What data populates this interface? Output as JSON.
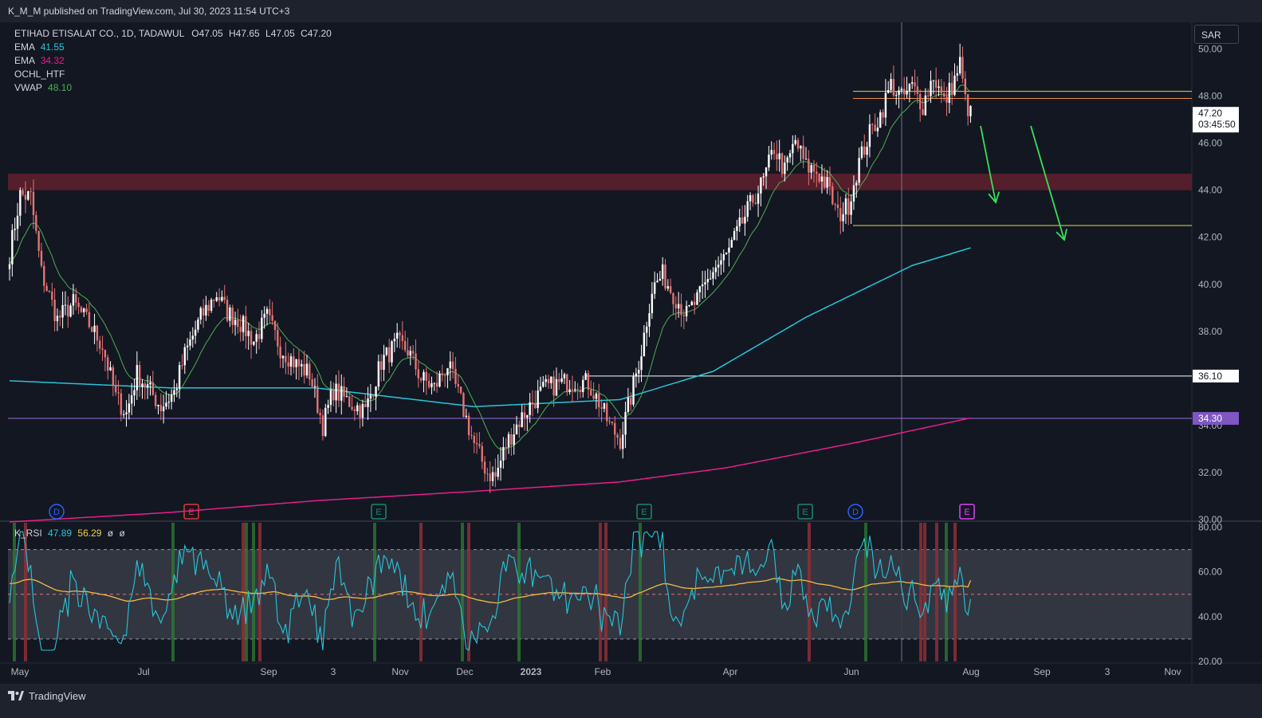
{
  "header": {
    "published_text": "K_M_M published on TradingView.com, Jul 30, 2023 11:54 UTC+3"
  },
  "legend": {
    "symbol": "ETIHAD ETISALAT CO., 1D, TADAWUL",
    "o_label": "O",
    "o": "47.05",
    "h_label": "H",
    "h": "47.65",
    "l_label": "L",
    "l": "47.05",
    "c_label": "C",
    "c": "47.20",
    "indicators": [
      {
        "name": "EMA",
        "value": "41.55",
        "color": "#26c6da"
      },
      {
        "name": "EMA",
        "value": "34.32",
        "color": "#e91e8c"
      },
      {
        "name": "OCHL_HTF",
        "value": "",
        "color": "#d1d4dc"
      },
      {
        "name": "VWAP",
        "value": "48.10",
        "color": "#4caf50"
      }
    ]
  },
  "rsi_legend": {
    "name": "K_RSI",
    "v1": "47.89",
    "v2": "56.29",
    "v3": "ø",
    "v4": "ø"
  },
  "currency": "SAR",
  "footer": {
    "brand": "TradingView"
  },
  "colors": {
    "up": "#ffffff",
    "down": "#e57373",
    "ema_fast": "#26c6da",
    "ema_slow": "#e91e8c",
    "vwap": "#4caf50",
    "zone": "#5c1f2e",
    "arrow": "#39e05a",
    "level": "#e8d44d",
    "purple": "#9c6ade",
    "band": "#363a45"
  },
  "chart_data": {
    "type": "candlestick",
    "title": "ETIHAD ETISALAT CO., 1D, TADAWUL",
    "price_axis": {
      "ylim": [
        30,
        51
      ],
      "ticks": [
        "50.00",
        "48.00",
        "46.00",
        "44.00",
        "42.00",
        "40.00",
        "38.00",
        "36.00",
        "34.00",
        "32.00",
        "30.00"
      ]
    },
    "time_axis": {
      "labels": [
        "May",
        "Jul",
        "Sep",
        "3",
        "Nov",
        "Dec",
        "2023",
        "Feb",
        "Apr",
        "Jun",
        "Aug",
        "Sep",
        "3",
        "Nov"
      ]
    },
    "price_anchors": [
      [
        0,
        41.3
      ],
      [
        4,
        43.8
      ],
      [
        8,
        43.7
      ],
      [
        12,
        40.5
      ],
      [
        18,
        38.5
      ],
      [
        24,
        39.2
      ],
      [
        30,
        38.3
      ],
      [
        35,
        37.4
      ],
      [
        40,
        35.2
      ],
      [
        44,
        34.5
      ],
      [
        48,
        36.2
      ],
      [
        52,
        35.6
      ],
      [
        57,
        34.8
      ],
      [
        62,
        35.4
      ],
      [
        66,
        37.0
      ],
      [
        72,
        38.6
      ],
      [
        78,
        39.6
      ],
      [
        82,
        38.8
      ],
      [
        86,
        38.5
      ],
      [
        92,
        37.6
      ],
      [
        97,
        38.6
      ],
      [
        102,
        37.3
      ],
      [
        108,
        36.6
      ],
      [
        113,
        36.2
      ],
      [
        118,
        34.0
      ],
      [
        122,
        35.5
      ],
      [
        128,
        35.0
      ],
      [
        134,
        34.6
      ],
      [
        140,
        36.7
      ],
      [
        146,
        37.5
      ],
      [
        150,
        37.2
      ],
      [
        155,
        36.0
      ],
      [
        160,
        35.6
      ],
      [
        165,
        36.6
      ],
      [
        170,
        35.0
      ],
      [
        175,
        33.2
      ],
      [
        180,
        32.0
      ],
      [
        183,
        31.8
      ],
      [
        187,
        33.2
      ],
      [
        192,
        34.2
      ],
      [
        197,
        35.0
      ],
      [
        202,
        35.6
      ],
      [
        208,
        35.8
      ],
      [
        213,
        35.9
      ],
      [
        218,
        35.8
      ],
      [
        222,
        35.0
      ],
      [
        226,
        34.0
      ],
      [
        230,
        33.4
      ],
      [
        234,
        35.2
      ],
      [
        238,
        37.2
      ],
      [
        242,
        39.8
      ],
      [
        246,
        40.4
      ],
      [
        250,
        39.6
      ],
      [
        255,
        38.7
      ],
      [
        260,
        39.5
      ],
      [
        265,
        40.6
      ],
      [
        270,
        41.2
      ],
      [
        275,
        42.4
      ],
      [
        280,
        43.6
      ],
      [
        284,
        44.4
      ],
      [
        288,
        45.8
      ],
      [
        292,
        44.8
      ],
      [
        296,
        46.1
      ],
      [
        300,
        45.0
      ],
      [
        304,
        44.8
      ],
      [
        308,
        44.2
      ],
      [
        312,
        42.9
      ],
      [
        316,
        43.4
      ],
      [
        320,
        45.2
      ],
      [
        324,
        46.4
      ],
      [
        328,
        47.2
      ],
      [
        332,
        48.5
      ],
      [
        336,
        47.9
      ],
      [
        340,
        48.4
      ],
      [
        344,
        47.6
      ],
      [
        348,
        48.9
      ],
      [
        352,
        47.7
      ],
      [
        356,
        48.7
      ],
      [
        358,
        49.4
      ],
      [
        360,
        47.8
      ],
      [
        362,
        47.2
      ]
    ],
    "ema_fast_anchors": [
      [
        0,
        35.9
      ],
      [
        60,
        35.6
      ],
      [
        115,
        35.6
      ],
      [
        175,
        34.8
      ],
      [
        230,
        35.1
      ],
      [
        265,
        36.3
      ],
      [
        300,
        38.6
      ],
      [
        340,
        40.8
      ],
      [
        362,
        41.55
      ]
    ],
    "ema_slow_anchors": [
      [
        0,
        29.9
      ],
      [
        60,
        30.3
      ],
      [
        115,
        30.8
      ],
      [
        175,
        31.2
      ],
      [
        230,
        31.6
      ],
      [
        270,
        32.2
      ],
      [
        320,
        33.3
      ],
      [
        362,
        34.32
      ]
    ],
    "levels": [
      {
        "name": "resistance-upper",
        "price": 48.2,
        "color": "#e8d44d"
      },
      {
        "name": "resistance-lower",
        "price": 47.9,
        "color": "#f08a3a"
      },
      {
        "name": "support-target",
        "price": 42.5,
        "color": "#e8d44d"
      },
      {
        "name": "horizontal-36-10",
        "price": 36.1,
        "color": "#ffffff"
      },
      {
        "name": "horizontal-34-30",
        "price": 34.3,
        "color": "#9c6ade"
      }
    ],
    "zone": {
      "from": 44.0,
      "to": 44.7
    },
    "price_labels": [
      {
        "text": "47.20",
        "sub": "03:45:50",
        "price": 47.2
      },
      {
        "text": "36.10",
        "price": 36.1
      },
      {
        "text": "34.30",
        "price": 34.3
      }
    ],
    "events": [
      {
        "letter": "D",
        "color": "#2962ff"
      },
      {
        "letter": "E",
        "color": "#e53935"
      },
      {
        "letter": "E",
        "color": "#1b8a6b"
      },
      {
        "letter": "E",
        "color": "#1b8a6b"
      },
      {
        "letter": "E",
        "color": "#1b8a6b"
      },
      {
        "letter": "D",
        "color": "#2962ff"
      },
      {
        "letter": "E",
        "color": "#e040fb"
      }
    ],
    "rsi": {
      "ylim": [
        20,
        82
      ],
      "ticks": [
        "80.00",
        "60.00",
        "40.00",
        "20.00"
      ],
      "upper_band": 70,
      "lower_band": 30,
      "mid": 50,
      "value": 47.89,
      "signal": 56.29
    }
  }
}
